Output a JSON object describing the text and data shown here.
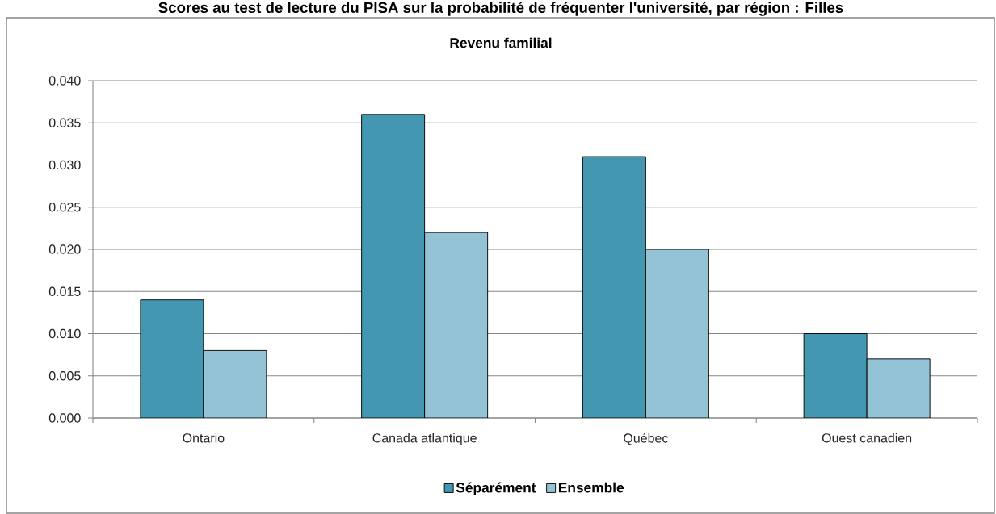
{
  "chart_data": {
    "type": "bar",
    "title": "Scores au test de lecture du PISA sur la probabilité de fréquenter l'université, par région : Filles",
    "subtitle": "Revenu familial",
    "categories": [
      "Ontario",
      "Canada atlantique",
      "Québec",
      "Ouest canadien"
    ],
    "series": [
      {
        "name": "Séparément",
        "color": "#4397b0",
        "values": [
          0.014,
          0.036,
          0.031,
          0.01
        ]
      },
      {
        "name": "Ensemble",
        "color": "#93c3d4",
        "values": [
          0.008,
          0.022,
          0.02,
          0.007
        ]
      }
    ],
    "ylim": [
      0,
      0.04
    ],
    "yticks": [
      {
        "value": 0,
        "label": "0.000"
      },
      0.005,
      {
        "value": 0.01,
        "label": "0.010"
      },
      0.015,
      {
        "value": 0.02,
        "label": "0.020"
      },
      0.025,
      {
        "value": 0.03,
        "label": "0.030"
      },
      0.035,
      {
        "value": 0.04,
        "label": "0.040"
      }
    ],
    "grid": "y",
    "legend": "bottom"
  }
}
